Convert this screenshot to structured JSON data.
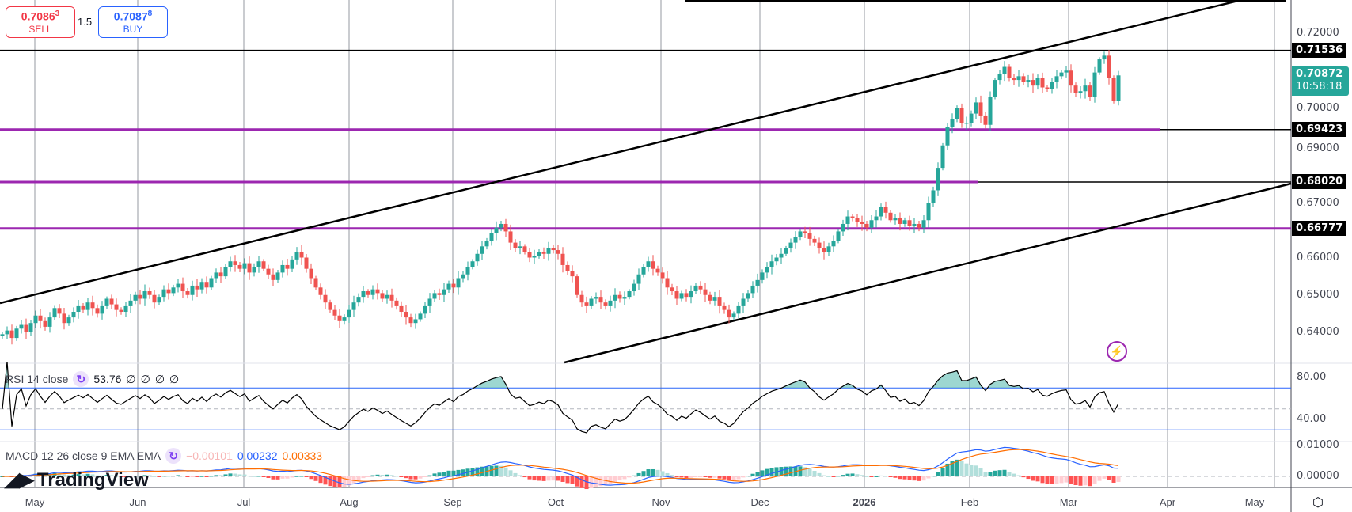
{
  "trade_panel": {
    "sell_price": "0.7086",
    "sell_sup": "3",
    "sell_label": "SELL",
    "spread": "1.5",
    "buy_price": "0.7087",
    "buy_sup": "8",
    "buy_label": "BUY"
  },
  "chart_data": {
    "type": "candlestick",
    "start_date": "2025-04-22",
    "closes": [
      0.6395,
      0.6405,
      0.6385,
      0.641,
      0.642,
      0.64,
      0.6425,
      0.6445,
      0.643,
      0.6415,
      0.644,
      0.6465,
      0.645,
      0.6425,
      0.644,
      0.6455,
      0.647,
      0.646,
      0.648,
      0.6465,
      0.645,
      0.647,
      0.649,
      0.6475,
      0.646,
      0.6455,
      0.647,
      0.6485,
      0.65,
      0.649,
      0.651,
      0.65,
      0.648,
      0.6495,
      0.6515,
      0.6505,
      0.652,
      0.653,
      0.651,
      0.65,
      0.6525,
      0.6515,
      0.6535,
      0.652,
      0.6545,
      0.656,
      0.655,
      0.6575,
      0.659,
      0.658,
      0.657,
      0.6585,
      0.656,
      0.6575,
      0.659,
      0.657,
      0.6555,
      0.654,
      0.656,
      0.658,
      0.657,
      0.6595,
      0.6615,
      0.66,
      0.657,
      0.6545,
      0.652,
      0.65,
      0.648,
      0.646,
      0.6445,
      0.643,
      0.644,
      0.646,
      0.648,
      0.6495,
      0.651,
      0.65,
      0.6515,
      0.6505,
      0.649,
      0.65,
      0.6485,
      0.647,
      0.6455,
      0.644,
      0.6425,
      0.6435,
      0.645,
      0.647,
      0.649,
      0.6505,
      0.65,
      0.6515,
      0.653,
      0.652,
      0.6545,
      0.6555,
      0.6575,
      0.659,
      0.661,
      0.663,
      0.6645,
      0.6665,
      0.668,
      0.669,
      0.667,
      0.664,
      0.6625,
      0.663,
      0.6615,
      0.66,
      0.6605,
      0.6615,
      0.661,
      0.6625,
      0.662,
      0.661,
      0.658,
      0.6565,
      0.655,
      0.65,
      0.648,
      0.647,
      0.649,
      0.6495,
      0.648,
      0.647,
      0.6485,
      0.65,
      0.649,
      0.6495,
      0.651,
      0.653,
      0.6555,
      0.6575,
      0.659,
      0.657,
      0.656,
      0.6545,
      0.652,
      0.651,
      0.649,
      0.6505,
      0.6495,
      0.651,
      0.6525,
      0.6515,
      0.65,
      0.6485,
      0.6495,
      0.647,
      0.646,
      0.644,
      0.645,
      0.647,
      0.649,
      0.6505,
      0.6525,
      0.654,
      0.656,
      0.6575,
      0.659,
      0.66,
      0.661,
      0.6625,
      0.664,
      0.6655,
      0.667,
      0.6665,
      0.665,
      0.664,
      0.6625,
      0.6615,
      0.663,
      0.6645,
      0.667,
      0.669,
      0.671,
      0.6705,
      0.6695,
      0.669,
      0.668,
      0.67,
      0.671,
      0.6735,
      0.672,
      0.67,
      0.6705,
      0.669,
      0.67,
      0.6685,
      0.669,
      0.668,
      0.67,
      0.6745,
      0.678,
      0.684,
      0.69,
      0.695,
      0.697,
      0.7,
      0.696,
      0.696,
      0.6985,
      0.7015,
      0.698,
      0.6955,
      0.703,
      0.7075,
      0.709,
      0.711,
      0.708,
      0.7075,
      0.7085,
      0.707,
      0.7075,
      0.706,
      0.708,
      0.7055,
      0.705,
      0.707,
      0.7085,
      0.7095,
      0.71,
      0.706,
      0.704,
      0.7045,
      0.706,
      0.703,
      0.7095,
      0.713,
      0.714,
      0.708,
      0.702,
      0.70872
    ],
    "price_axis": {
      "ticks": [
        "0.72000",
        "0.70000",
        "0.69000",
        "0.67000",
        "0.66000",
        "0.65000",
        "0.64000"
      ],
      "tick_values": [
        0.72,
        0.7,
        0.69,
        0.67,
        0.66,
        0.65,
        0.64
      ]
    },
    "horizontal_levels": [
      {
        "label": "0.71536",
        "value": 0.71536,
        "color": "#000000"
      },
      {
        "label": "0.69423",
        "value": 0.69423,
        "color": "#9c27b0"
      },
      {
        "label": "0.68020",
        "value": 0.6802,
        "color": "#9c27b0"
      },
      {
        "label": "0.66777",
        "value": 0.66777,
        "color": "#9c27b0"
      }
    ],
    "last_price": {
      "value": "0.70872",
      "countdown": "10:58:18",
      "color": "#26a69a"
    },
    "x_axis": {
      "labels": [
        "May",
        "Jun",
        "Jul",
        "Aug",
        "Sep",
        "Oct",
        "Nov",
        "Dec",
        "2026",
        "Feb",
        "Mar",
        "Apr",
        "May"
      ]
    },
    "colors": {
      "up": "#26a69a",
      "down": "#ef5350",
      "level": "#9c27b0",
      "trendline": "#000000"
    },
    "rsi": {
      "title": "RSI 14 close",
      "value": "53.76",
      "extras": [
        "∅",
        "∅",
        "∅",
        "∅"
      ],
      "ticks": [
        "80.00",
        "40.00"
      ],
      "upper_band": 70,
      "lower_band": 30,
      "mid": 50
    },
    "macd": {
      "title": "MACD 12 26 close 9 EMA EMA",
      "histogram": "−0.00101",
      "macd": "0.00232",
      "signal": "0.00333",
      "ticks": [
        "0.01000",
        "0.00000"
      ],
      "colors": {
        "histogram": "#f7b5b5",
        "macd": "#2962ff",
        "signal": "#ff6d00"
      }
    }
  },
  "branding": {
    "logo": "TradingView"
  }
}
